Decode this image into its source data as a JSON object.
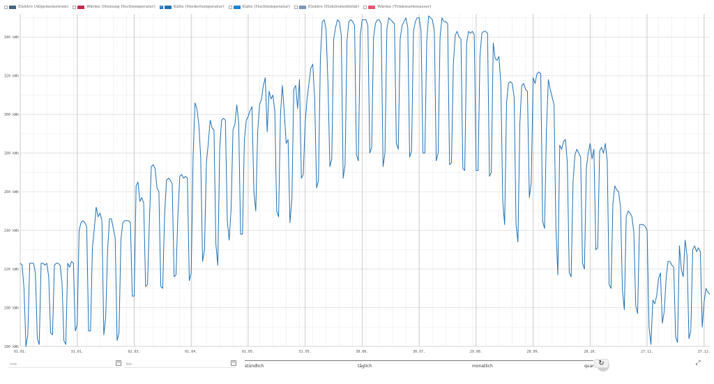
{
  "legend": [
    {
      "label": "Elektro (Allgemeinstrom)",
      "checked": false,
      "color": "#4a6282"
    },
    {
      "label": "Wärme (Heizung Hochtemperatur)",
      "checked": false,
      "color": "#c42a4a"
    },
    {
      "label": "Kälte (Niedertemperatur)",
      "checked": true,
      "color": "#1f6fb2"
    },
    {
      "label": "Kälte (Hochtemperatur)",
      "checked": false,
      "color": "#1f83d3"
    },
    {
      "label": "Elektro (Elektromobilität)",
      "checked": false,
      "color": "#7c95b6"
    },
    {
      "label": "Wärme (Trinkwarmwasser)",
      "checked": false,
      "color": "#e35670"
    }
  ],
  "chart_data": {
    "type": "line",
    "series": [
      {
        "name": "Kälte (Niedertemperatur)",
        "color": "#1f6fb2",
        "values": [
          223,
          222,
          210,
          180,
          186,
          223,
          223,
          223,
          218,
          184,
          181,
          223,
          223,
          222,
          223,
          216,
          187,
          186,
          222,
          223,
          223,
          222,
          213,
          183,
          181,
          223,
          221,
          224,
          223,
          188,
          191,
          240,
          244,
          245,
          244,
          242,
          188,
          188,
          231,
          241,
          252,
          247,
          249,
          245,
          186,
          195,
          230,
          246,
          246,
          241,
          236,
          183,
          187,
          235,
          244,
          245,
          245,
          245,
          244,
          206,
          206,
          263,
          265,
          255,
          257,
          254,
          211,
          212,
          245,
          273,
          274,
          272,
          262,
          260,
          211,
          210,
          248,
          266,
          267,
          266,
          264,
          216,
          217,
          248,
          268,
          269,
          267,
          268,
          267,
          214,
          218,
          278,
          306,
          303,
          295,
          278,
          224,
          230,
          275,
          285,
          297,
          293,
          292,
          233,
          222,
          282,
          297,
          298,
          297,
          245,
          235,
          251,
          292,
          295,
          305,
          296,
          238,
          238,
          287,
          297,
          299,
          302,
          304,
          260,
          250,
          291,
          305,
          308,
          315,
          319,
          291,
          312,
          308,
          310,
          302,
          250,
          247,
          300,
          315,
          301,
          285,
          287,
          244,
          256,
          313,
          315,
          303,
          318,
          267,
          269,
          296,
          308,
          316,
          324,
          326,
          308,
          262,
          266,
          329,
          348,
          349,
          344,
          316,
          273,
          277,
          339,
          345,
          349,
          348,
          341,
          267,
          274,
          338,
          348,
          349,
          348,
          346,
          279,
          276,
          341,
          349,
          349,
          349,
          346,
          280,
          283,
          340,
          347,
          349,
          349,
          347,
          273,
          280,
          344,
          350,
          349,
          348,
          347,
          285,
          282,
          339,
          346,
          348,
          350,
          345,
          278,
          281,
          343,
          348,
          350,
          350,
          343,
          280,
          280,
          338,
          351,
          350,
          349,
          343,
          276,
          280,
          340,
          350,
          348,
          348,
          347,
          274,
          275,
          326,
          341,
          343,
          340,
          339,
          272,
          271,
          337,
          343,
          342,
          343,
          341,
          271,
          271,
          330,
          342,
          343,
          343,
          342,
          268,
          270,
          337,
          329,
          328,
          330,
          316,
          255,
          243,
          306,
          316,
          317,
          316,
          309,
          243,
          234,
          295,
          315,
          316,
          313,
          312,
          257,
          265,
          319,
          316,
          321,
          322,
          321,
          245,
          241,
          292,
          318,
          313,
          309,
          305,
          241,
          217,
          284,
          282,
          286,
          287,
          275,
          218,
          216,
          265,
          279,
          282,
          280,
          278,
          223,
          220,
          272,
          280,
          285,
          277,
          282,
          230,
          231,
          281,
          283,
          280,
          285,
          276,
          212,
          210,
          254,
          263,
          261,
          260,
          252,
          209,
          199,
          247,
          250,
          249,
          247,
          239,
          201,
          197,
          243,
          243,
          243,
          242,
          240,
          190,
          181,
          204,
          202,
          206,
          215,
          218,
          192,
          198,
          215,
          224,
          224,
          222,
          221,
          185,
          182,
          232,
          220,
          216,
          235,
          227,
          184,
          188,
          230,
          232,
          229,
          231,
          229,
          190,
          203,
          210,
          208,
          207
        ]
      }
    ],
    "x_labels": [
      "01.01.",
      "31.01.",
      "02.03.",
      "01.04.",
      "01.05.",
      "31.05.",
      "30.06.",
      "30.07.",
      "29.08.",
      "28.09.",
      "28.10.",
      "27.11.",
      "27.12."
    ],
    "y_ticks": [
      180,
      200,
      220,
      240,
      260,
      280,
      300,
      320,
      340
    ],
    "y_tick_labels": [
      "180 kWh",
      "200 kWh",
      "220 kWh",
      "240 kWh",
      "260 kWh",
      "280 kWh",
      "300 kWh",
      "320 kWh",
      "340 kWh"
    ],
    "ylim": [
      180,
      352
    ],
    "grid": true,
    "legend_position": "top-left"
  },
  "controls": {
    "from_label": "von",
    "to_label": "bis",
    "resolutions": [
      "stündlich",
      "täglich",
      "monatlich",
      "quar"
    ],
    "selected_resolution": "täglich"
  }
}
